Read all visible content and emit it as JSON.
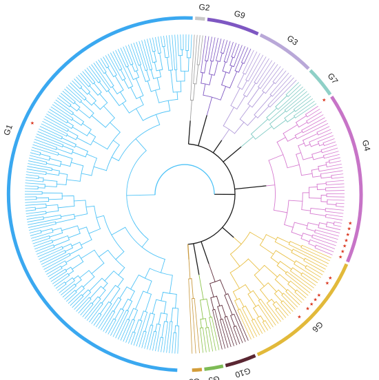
{
  "figure": {
    "type": "circular-phylogenetic-tree",
    "background": "#ffffff",
    "backbone_color": "#1a1a1a",
    "marker_icon": "red-star-icon",
    "marker_color": "#d9341c"
  },
  "groups": [
    {
      "id": "G1",
      "label": "G1",
      "color": "#4fc3f7",
      "ring_color": "#3aa8f0",
      "leaves": 180,
      "from_deg": 92,
      "to_deg": 273,
      "label_deg": 200,
      "markers": [
        205
      ]
    },
    {
      "id": "G2",
      "label": "G2",
      "color": "#9e9e9e",
      "ring_color": "#c8c8c8",
      "leaves": 4,
      "from_deg": 273,
      "to_deg": 277,
      "label_deg": 276,
      "markers": []
    },
    {
      "id": "G9",
      "label": "G9",
      "color": "#7e57c2",
      "ring_color": "#7e57c2",
      "leaves": 16,
      "from_deg": 277,
      "to_deg": 295,
      "label_deg": 287,
      "markers": []
    },
    {
      "id": "G3",
      "label": "G3",
      "color": "#b39ddb",
      "ring_color": "#b9a8d8",
      "leaves": 16,
      "from_deg": 295,
      "to_deg": 315,
      "label_deg": 305,
      "markers": []
    },
    {
      "id": "G7",
      "label": "G7",
      "color": "#80cbc4",
      "ring_color": "#8fd0c7",
      "leaves": 10,
      "from_deg": 315,
      "to_deg": 326,
      "label_deg": 322,
      "markers": [
        326
      ]
    },
    {
      "id": "G4",
      "label": "G4",
      "color": "#d67ad0",
      "ring_color": "#c774c7",
      "leaves": 48,
      "from_deg": 326,
      "to_deg": 383,
      "label_deg": 345,
      "markers": [
        370,
        372,
        374,
        376,
        378,
        380,
        382
      ]
    },
    {
      "id": "G6",
      "label": "G6",
      "color": "#e9c046",
      "ring_color": "#e2b93a",
      "leaves": 38,
      "from_deg": 383,
      "to_deg": 426,
      "label_deg": 405,
      "markers": [
        390,
        392,
        397,
        399,
        401,
        403,
        407
      ]
    },
    {
      "id": "G10",
      "label": "G10",
      "color": "#5d2b3a",
      "ring_color": "#5a2632",
      "leaves": 10,
      "from_deg": 426,
      "to_deg": 437,
      "label_deg": 432,
      "markers": []
    },
    {
      "id": "G5",
      "label": "G5",
      "color": "#8bc34a",
      "ring_color": "#7dbb55",
      "leaves": 6,
      "from_deg": 437,
      "to_deg": 444,
      "label_deg": 441,
      "markers": []
    },
    {
      "id": "G8",
      "label": "G8",
      "color": "#c8973a",
      "ring_color": "#d39d3a",
      "leaves": 3,
      "from_deg": 444,
      "to_deg": 448,
      "label_deg": 447,
      "markers": []
    }
  ]
}
